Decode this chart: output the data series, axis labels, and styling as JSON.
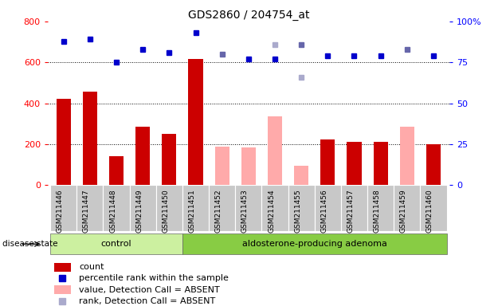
{
  "title": "GDS2860 / 204754_at",
  "samples": [
    "GSM211446",
    "GSM211447",
    "GSM211448",
    "GSM211449",
    "GSM211450",
    "GSM211451",
    "GSM211452",
    "GSM211453",
    "GSM211454",
    "GSM211455",
    "GSM211456",
    "GSM211457",
    "GSM211458",
    "GSM211459",
    "GSM211460"
  ],
  "count_values": [
    420,
    455,
    140,
    285,
    250,
    615,
    null,
    null,
    null,
    null,
    225,
    210,
    210,
    null,
    200
  ],
  "count_absent_values": [
    null,
    null,
    null,
    null,
    null,
    null,
    190,
    185,
    335,
    95,
    null,
    null,
    null,
    285,
    null
  ],
  "rank_present_pct": [
    88,
    89,
    75,
    83,
    81,
    93,
    null,
    77,
    77,
    null,
    79,
    79,
    79,
    null,
    79
  ],
  "rank_absent_dark_pct": [
    null,
    null,
    null,
    null,
    null,
    null,
    80,
    null,
    null,
    86,
    null,
    null,
    null,
    83,
    null
  ],
  "rank_absent_light_pct": [
    null,
    null,
    null,
    null,
    null,
    null,
    null,
    null,
    86,
    66,
    null,
    null,
    null,
    null,
    null
  ],
  "ylim_left": [
    0,
    800
  ],
  "ylim_right": [
    0,
    100
  ],
  "yticks_left": [
    0,
    200,
    400,
    600,
    800
  ],
  "yticks_right": [
    0,
    25,
    50,
    75,
    100
  ],
  "ytick_right_labels": [
    "0",
    "25",
    "50",
    "75",
    "100%"
  ],
  "control_indices": [
    0,
    1,
    2,
    3,
    4
  ],
  "adenoma_indices": [
    5,
    6,
    7,
    8,
    9,
    10,
    11,
    12,
    13,
    14
  ],
  "bar_color_present": "#cc0000",
  "bar_color_absent": "#ffaaaa",
  "dot_color_present": "#0000cc",
  "dot_color_absent_dark": "#6666aa",
  "dot_color_absent_light": "#aaaacc",
  "group_bg_control": "#ccf0a0",
  "group_bg_adenoma": "#88cc44",
  "tick_bg": "#c8c8c8",
  "disease_label": "disease state",
  "legend_items": [
    {
      "label": "count",
      "color": "#cc0000",
      "type": "bar"
    },
    {
      "label": "percentile rank within the sample",
      "color": "#0000cc",
      "type": "dot"
    },
    {
      "label": "value, Detection Call = ABSENT",
      "color": "#ffaaaa",
      "type": "bar"
    },
    {
      "label": "rank, Detection Call = ABSENT",
      "color": "#aaaacc",
      "type": "dot"
    }
  ]
}
